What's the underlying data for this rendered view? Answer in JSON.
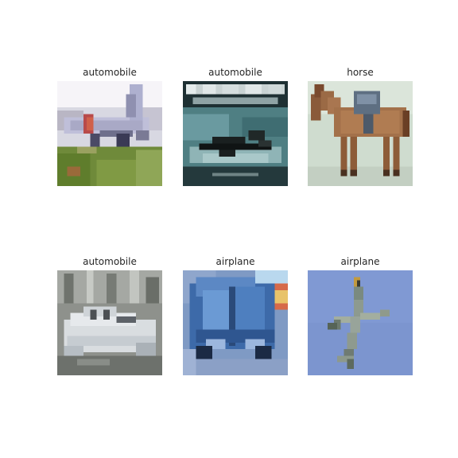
{
  "grid": {
    "images": [
      {
        "label": "automobile",
        "subject": "airplane-on-grass"
      },
      {
        "label": "automobile",
        "subject": "aircraft-on-book-cover"
      },
      {
        "label": "horse",
        "subject": "horse"
      },
      {
        "label": "automobile",
        "subject": "boat"
      },
      {
        "label": "airplane",
        "subject": "blue-car"
      },
      {
        "label": "airplane",
        "subject": "airplane-in-sky"
      }
    ]
  }
}
